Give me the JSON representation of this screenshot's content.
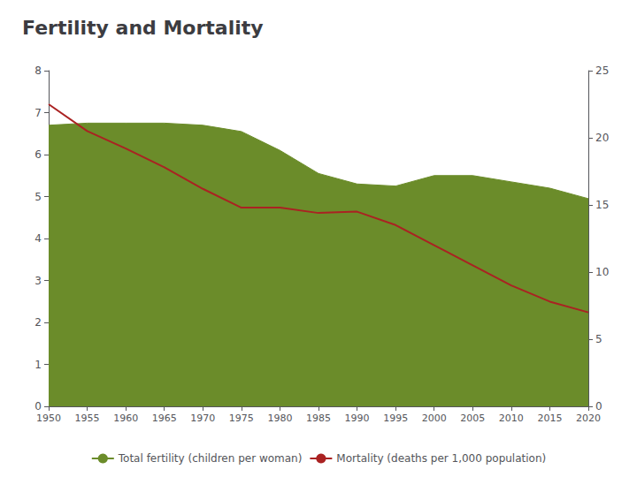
{
  "chart_data": {
    "type": "line",
    "title": "Fertility and Mortality",
    "x": [
      1950,
      1955,
      1960,
      1965,
      1970,
      1975,
      1980,
      1985,
      1990,
      1995,
      2000,
      2005,
      2010,
      2015,
      2020
    ],
    "series": [
      {
        "name": "Total fertility (children per woman)",
        "type": "area",
        "color": "#6b8c2a",
        "values": [
          6.7,
          6.75,
          6.75,
          6.75,
          6.7,
          6.55,
          6.1,
          5.55,
          5.3,
          5.25,
          5.5,
          5.5,
          5.35,
          5.2,
          4.95
        ]
      },
      {
        "name": "Mortality (deaths per 1,000 population)",
        "type": "line",
        "color": "#aa2222",
        "axis": "y2",
        "values": [
          22.5,
          20.5,
          19.2,
          17.8,
          16.2,
          14.8,
          14.8,
          14.4,
          14.5,
          13.5,
          12.0,
          10.5,
          9.0,
          7.8,
          7.0
        ]
      }
    ],
    "xlim": [
      1950,
      2020
    ],
    "xticks": [
      1950,
      1955,
      1960,
      1965,
      1970,
      1975,
      1980,
      1985,
      1990,
      1995,
      2000,
      2005,
      2010,
      2015,
      2020
    ],
    "ylim": [
      0,
      8
    ],
    "yticks": [
      0,
      1,
      2,
      3,
      4,
      5,
      6,
      7,
      8
    ],
    "y2lim": [
      0,
      25
    ],
    "y2ticks": [
      0,
      5,
      10,
      15,
      20,
      25
    ],
    "grid": false,
    "legend": "bottom"
  }
}
